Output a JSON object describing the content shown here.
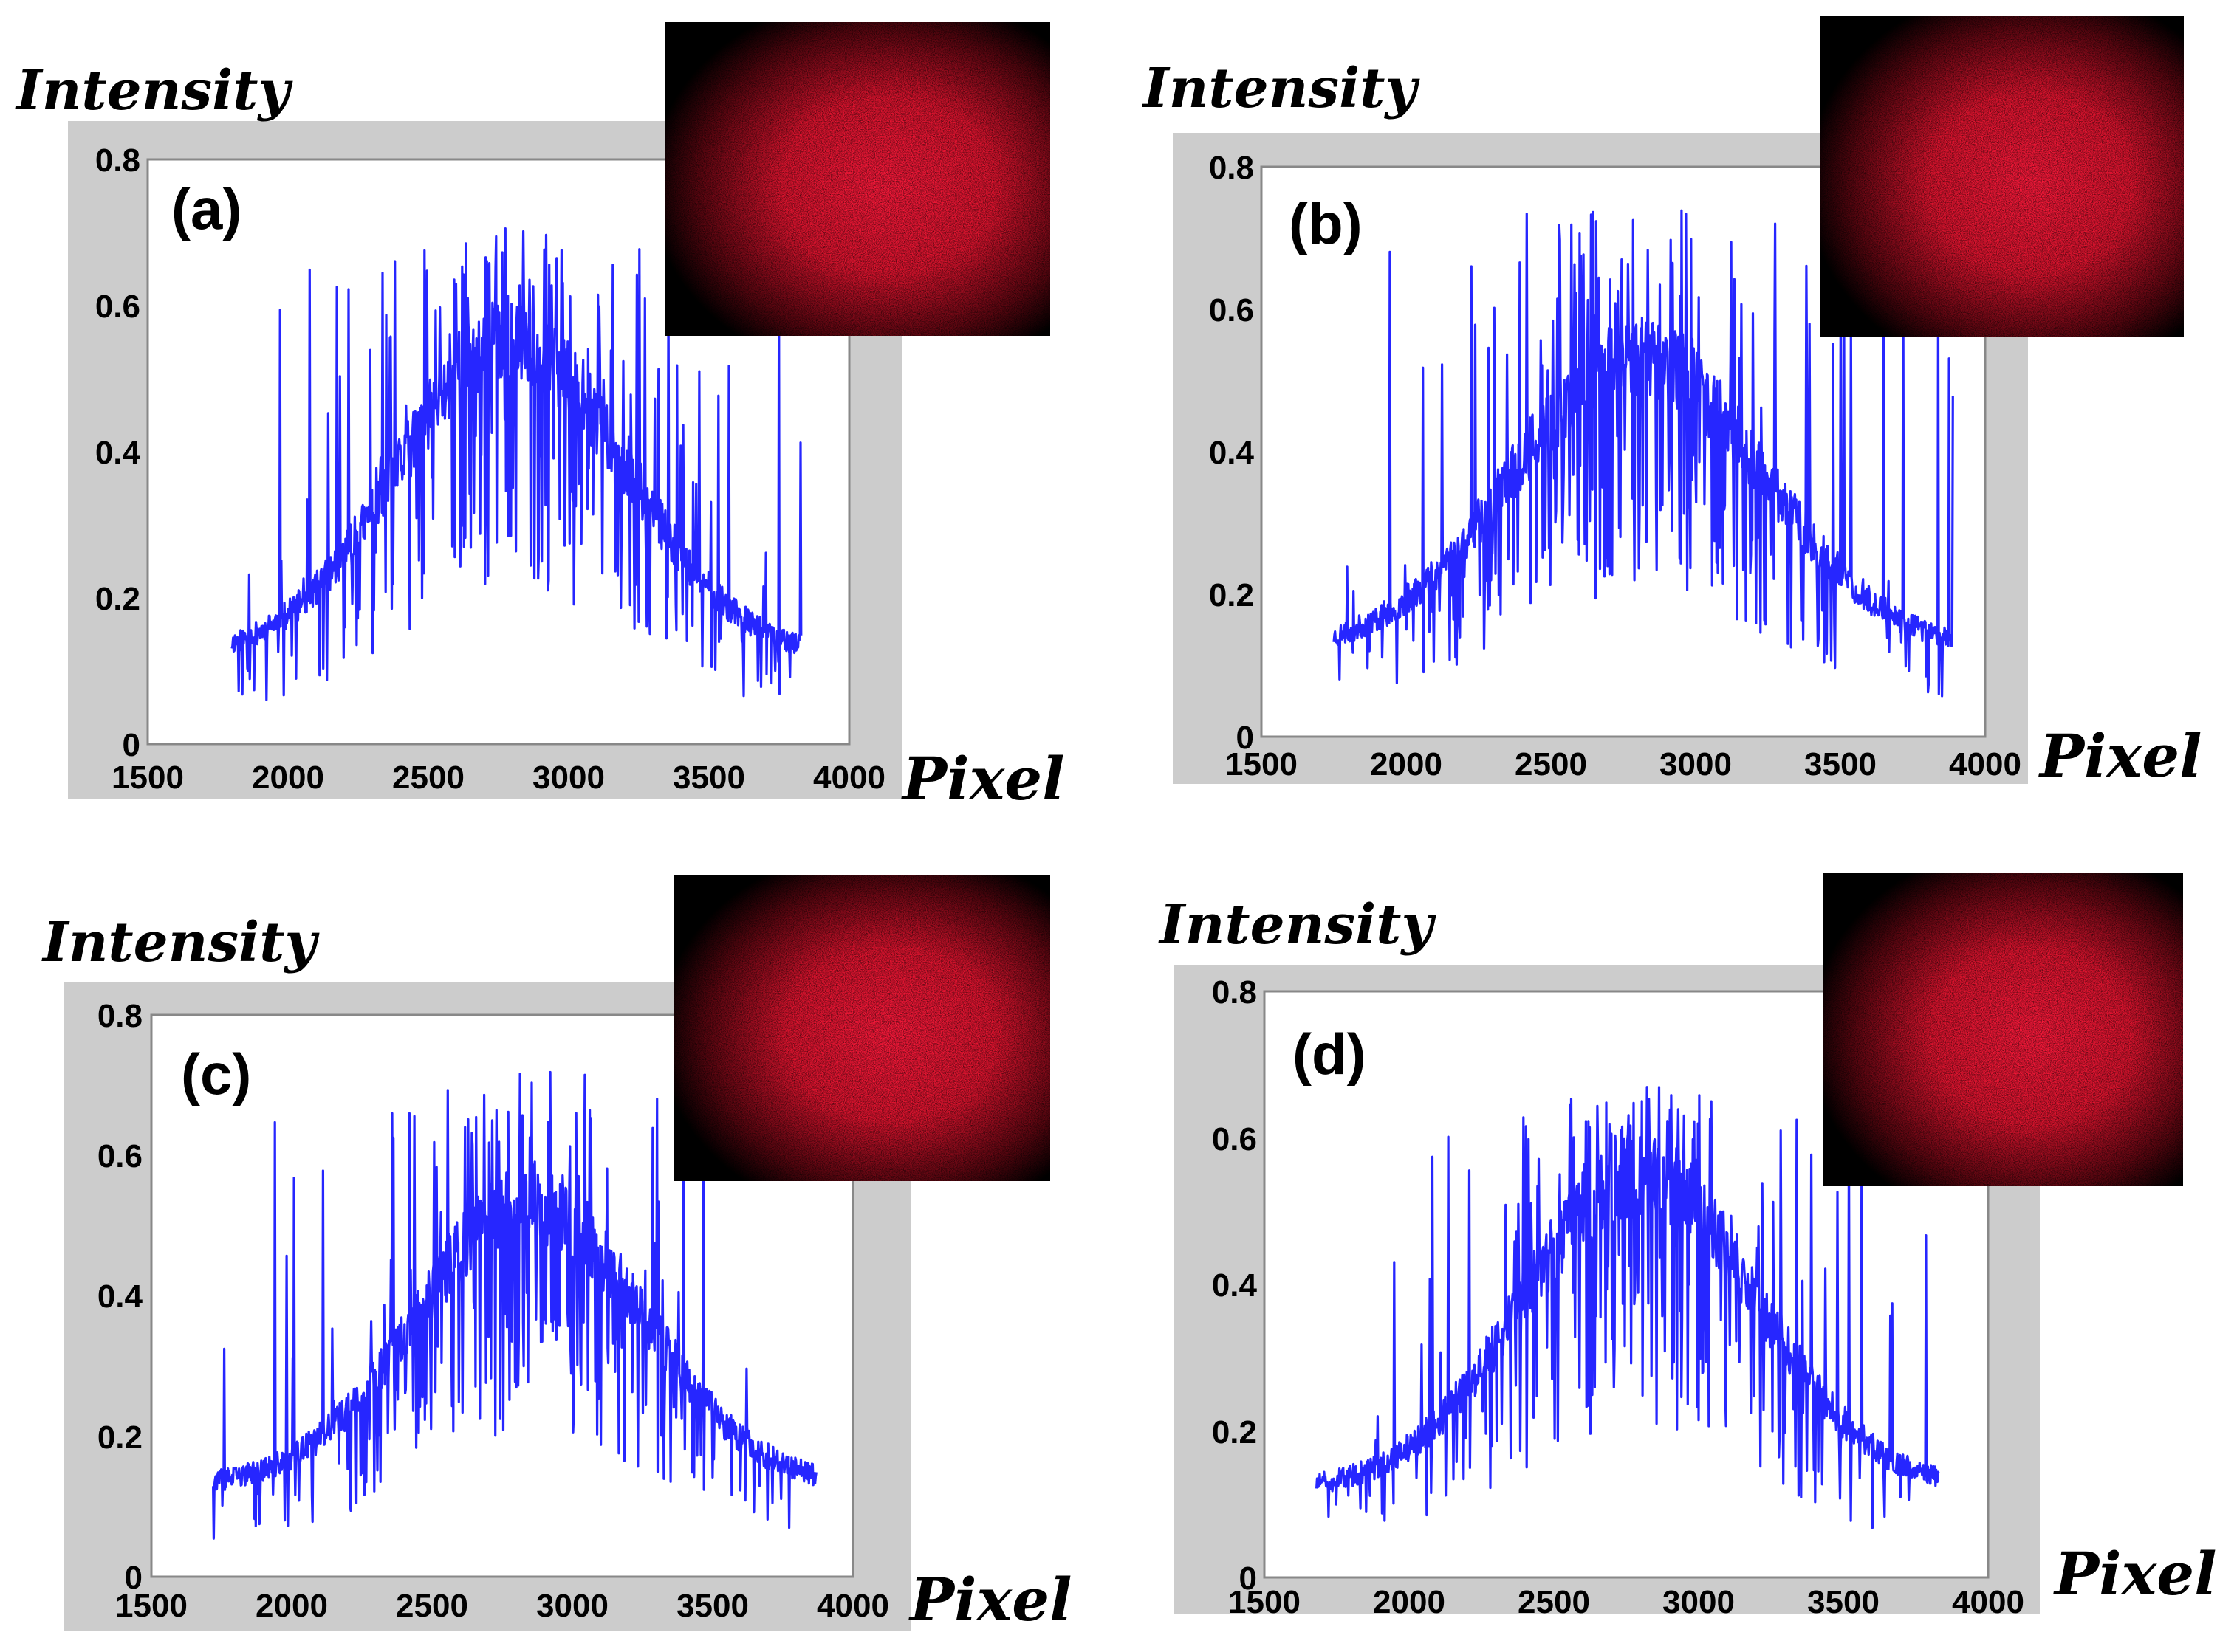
{
  "figure": {
    "panels": [
      {
        "label": "(a)",
        "ylabel": "Intensity",
        "xlabel": "Pixel"
      },
      {
        "label": "(b)",
        "ylabel": "Intensity",
        "xlabel": "Pixel"
      },
      {
        "label": "(c)",
        "ylabel": "Intensity",
        "xlabel": "Pixel"
      },
      {
        "label": "(d)",
        "ylabel": "Intensity",
        "xlabel": "Pixel"
      }
    ]
  },
  "colors": {
    "trace": "#0000ff",
    "frame": "#cccccc",
    "speckle_core": "#ff1a3c",
    "speckle_edge": "#000000"
  },
  "chart_data": [
    {
      "type": "line",
      "panel": "(a)",
      "title": "(a)",
      "xlabel": "Pixel",
      "ylabel": "Intensity",
      "xlim": [
        1500,
        4000
      ],
      "ylim": [
        0,
        0.8
      ],
      "xticks": [
        "1500",
        "2000",
        "2500",
        "3000",
        "3500",
        "4000"
      ],
      "yticks": [
        "0",
        "0.2",
        "0.4",
        "0.6",
        "0.8"
      ],
      "x_range": [
        1800,
        3830
      ],
      "center": 2800,
      "sigma": 400,
      "baseline": 0.13,
      "peak_mean": 0.6,
      "peak_max": 0.72,
      "inset": "red speckle pattern, top-right",
      "series": [
        {
          "name": "intensity profile",
          "x": [
            1800,
            2000,
            2200,
            2400,
            2600,
            2800,
            3000,
            3200,
            3400,
            3600,
            3830
          ],
          "values": [
            0.13,
            0.15,
            0.2,
            0.32,
            0.5,
            0.6,
            0.55,
            0.38,
            0.23,
            0.15,
            0.12
          ]
        }
      ]
    },
    {
      "type": "line",
      "panel": "(b)",
      "title": "(b)",
      "xlabel": "Pixel",
      "ylabel": "Intensity",
      "xlim": [
        1500,
        4000
      ],
      "ylim": [
        0,
        0.8
      ],
      "xticks": [
        "1500",
        "2000",
        "2500",
        "3000",
        "3500",
        "4000"
      ],
      "yticks": [
        "0",
        "0.2",
        "0.4",
        "0.6",
        "0.8"
      ],
      "x_range": [
        1750,
        3890
      ],
      "center": 2800,
      "sigma": 430,
      "baseline": 0.13,
      "peak_mean": 0.58,
      "peak_max": 0.77,
      "inset": "red speckle pattern, top-right",
      "series": [
        {
          "name": "intensity profile",
          "x": [
            1750,
            2000,
            2200,
            2400,
            2600,
            2800,
            3000,
            3200,
            3400,
            3600,
            3890
          ],
          "values": [
            0.13,
            0.15,
            0.19,
            0.3,
            0.48,
            0.58,
            0.55,
            0.4,
            0.25,
            0.16,
            0.12
          ]
        }
      ]
    },
    {
      "type": "line",
      "panel": "(c)",
      "title": "(c)",
      "xlabel": "Pixel",
      "ylabel": "Intensity",
      "xlim": [
        1500,
        4000
      ],
      "ylim": [
        0,
        0.8
      ],
      "xticks": [
        "1500",
        "2000",
        "2500",
        "3000",
        "3500",
        "4000"
      ],
      "yticks": [
        "0",
        "0.2",
        "0.4",
        "0.6",
        "0.8"
      ],
      "x_range": [
        1720,
        3870
      ],
      "center": 2850,
      "sigma": 400,
      "baseline": 0.14,
      "peak_mean": 0.58,
      "peak_max": 0.74,
      "inset": "red speckle pattern, top-right",
      "series": [
        {
          "name": "intensity profile",
          "x": [
            1720,
            2000,
            2200,
            2400,
            2600,
            2850,
            3000,
            3200,
            3400,
            3600,
            3870
          ],
          "values": [
            0.14,
            0.15,
            0.19,
            0.3,
            0.48,
            0.58,
            0.55,
            0.4,
            0.25,
            0.16,
            0.12
          ]
        }
      ]
    },
    {
      "type": "line",
      "panel": "(d)",
      "title": "(d)",
      "xlabel": "Pixel",
      "ylabel": "Intensity",
      "xlim": [
        1500,
        4000
      ],
      "ylim": [
        0,
        0.8
      ],
      "xticks": [
        "1500",
        "2000",
        "2500",
        "3000",
        "3500",
        "4000"
      ],
      "yticks": [
        "0",
        "0.2",
        "0.4",
        "0.6",
        "0.8"
      ],
      "x_range": [
        1680,
        3830
      ],
      "center": 2800,
      "sigma": 400,
      "baseline": 0.13,
      "peak_mean": 0.6,
      "peak_max": 0.68,
      "inset": "red speckle pattern, top-right",
      "series": [
        {
          "name": "intensity profile",
          "x": [
            1680,
            2000,
            2200,
            2400,
            2600,
            2800,
            3000,
            3200,
            3400,
            3600,
            3830
          ],
          "values": [
            0.13,
            0.15,
            0.19,
            0.3,
            0.5,
            0.6,
            0.56,
            0.4,
            0.24,
            0.15,
            0.12
          ]
        }
      ]
    }
  ]
}
